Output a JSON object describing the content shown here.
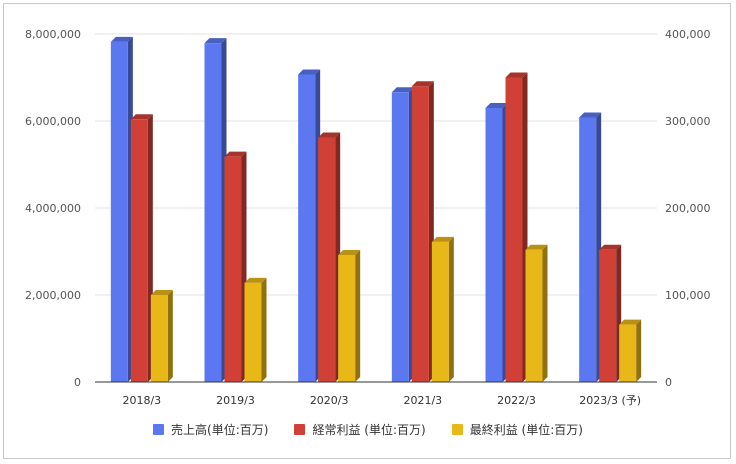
{
  "chart_data": {
    "type": "bar",
    "categories": [
      "2018/3",
      "2019/3",
      "2020/3",
      "2021/3",
      "2022/3",
      "2023/3 (予)"
    ],
    "series": [
      {
        "name": "売上高(単位:百万)",
        "axis": "left",
        "color": "#5b78f0",
        "values": [
          7820000,
          7790000,
          7070000,
          6660000,
          6300000,
          6080000
        ]
      },
      {
        "name": "経常利益 (単位:百万)",
        "axis": "right",
        "color": "#d04037",
        "values": [
          302000,
          259000,
          281000,
          340000,
          350000,
          152000
        ]
      },
      {
        "name": "最終利益 (単位:百万)",
        "axis": "right",
        "color": "#e8b718",
        "values": [
          100000,
          114000,
          146000,
          161000,
          152000,
          66000
        ]
      }
    ],
    "left_axis": {
      "ylim": [
        0,
        8000000
      ],
      "ticks": [
        "0",
        "2,000,000",
        "4,000,000",
        "6,000,000",
        "8,000,000"
      ]
    },
    "right_axis": {
      "ylim": [
        0,
        400000
      ],
      "ticks": [
        "0",
        "100,000",
        "200,000",
        "300,000",
        "400,000"
      ]
    },
    "grid": true,
    "legend_position": "bottom",
    "style": "3d-columns"
  }
}
